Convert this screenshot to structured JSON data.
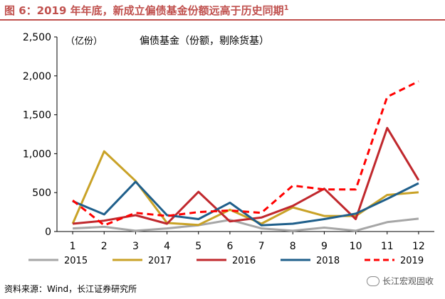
{
  "header": {
    "title": "图 6：2019 年年底，新成立偏债基金份额远高于历史同期",
    "title_sup": "1"
  },
  "footer": {
    "source": "资料来源：Wind，长江证券研究所",
    "watermark": "长江宏观固收"
  },
  "colors": {
    "title": "#c0504d",
    "s2015": "#a6a6a6",
    "s2017": "#c9a227",
    "s2016": "#c0282d",
    "s2018": "#1f5f8b",
    "s2019": "#ff0000"
  },
  "chart_data": {
    "type": "line",
    "title": "偏债基金（份额，剔除货基）",
    "unit_label": "（亿份）",
    "xlabel": "",
    "ylabel": "",
    "x": [
      "1",
      "2",
      "3",
      "4",
      "5",
      "6",
      "7",
      "8",
      "9",
      "10",
      "11",
      "12"
    ],
    "ylim": [
      0,
      2500
    ],
    "yticks": [
      "0",
      "500",
      "1,000",
      "1,500",
      "2,000",
      "2,500"
    ],
    "grid": false,
    "legend_position": "bottom",
    "series": [
      {
        "name": "2015",
        "dash": "solid",
        "color": "#a6a6a6",
        "values": [
          40,
          60,
          10,
          40,
          80,
          150,
          40,
          10,
          50,
          10,
          120,
          165
        ]
      },
      {
        "name": "2017",
        "dash": "solid",
        "color": "#c9a227",
        "values": [
          100,
          1030,
          650,
          110,
          85,
          280,
          100,
          310,
          200,
          200,
          470,
          505
        ]
      },
      {
        "name": "2016",
        "dash": "solid",
        "color": "#c0282d",
        "values": [
          100,
          140,
          210,
          100,
          510,
          130,
          180,
          330,
          550,
          160,
          1330,
          660
        ]
      },
      {
        "name": "2018",
        "dash": "solid",
        "color": "#1f5f8b",
        "values": [
          390,
          220,
          640,
          210,
          160,
          370,
          80,
          100,
          160,
          230,
          420,
          620
        ]
      },
      {
        "name": "2019",
        "dash": "dashed",
        "color": "#ff0000",
        "values": [
          400,
          80,
          240,
          200,
          250,
          270,
          240,
          590,
          540,
          540,
          1730,
          1930
        ]
      }
    ]
  }
}
